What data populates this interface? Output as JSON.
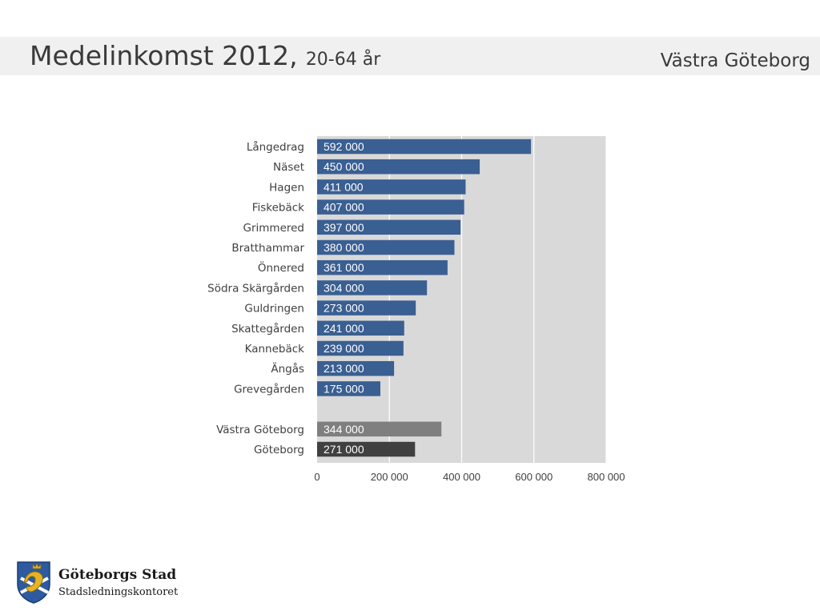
{
  "header": {
    "title_main": "Medelinkomst 2012,",
    "title_sub": "20-64 år",
    "region": "Västra Göteborg"
  },
  "logo": {
    "org": "Göteborgs Stad",
    "dept": "Stadsledningskontoret"
  },
  "colors": {
    "district_bar": "#3a5f92",
    "region_bar": "#7f7f7f",
    "city_bar": "#404040",
    "plot_bg": "#d9d9d9",
    "header_band": "#f0f0f0"
  },
  "chart_data": {
    "type": "bar",
    "orientation": "horizontal",
    "categories": [
      "Långedrag",
      "Näset",
      "Hagen",
      "Fiskebäck",
      "Grimmered",
      "Bratthammar",
      "Önnered",
      "Södra Skärgården",
      "Guldringen",
      "Skattegården",
      "Kannebäck",
      "Ängås",
      "Grevegården",
      "Västra Göteborg",
      "Göteborg"
    ],
    "values": [
      592000,
      450000,
      411000,
      407000,
      397000,
      380000,
      361000,
      304000,
      273000,
      241000,
      239000,
      213000,
      175000,
      344000,
      271000
    ],
    "value_labels": [
      "592 000",
      "450 000",
      "411 000",
      "407 000",
      "397 000",
      "380 000",
      "361 000",
      "304 000",
      "273 000",
      "241 000",
      "239 000",
      "213 000",
      "175 000",
      "344 000",
      "271 000"
    ],
    "groups": [
      "district",
      "district",
      "district",
      "district",
      "district",
      "district",
      "district",
      "district",
      "district",
      "district",
      "district",
      "district",
      "district",
      "region",
      "city"
    ],
    "xlim": [
      0,
      800000
    ],
    "xticks": [
      0,
      200000,
      400000,
      600000,
      800000
    ],
    "xtick_labels": [
      "0",
      "200 000",
      "400 000",
      "600 000",
      "800 000"
    ],
    "grid": true
  }
}
